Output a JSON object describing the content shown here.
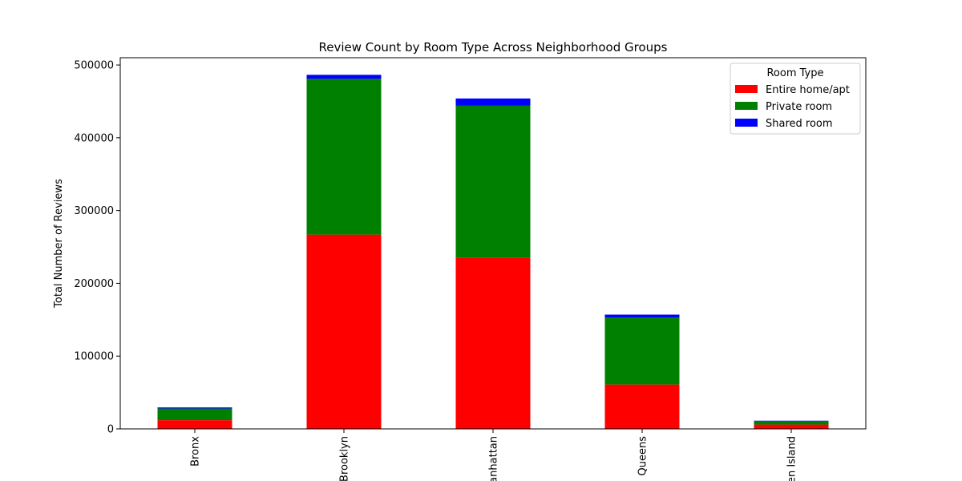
{
  "chart_data": {
    "type": "bar",
    "stacked": true,
    "title": "Review Count by Room Type Across Neighborhood Groups",
    "xlabel": "",
    "ylabel": "Total Number of Reviews",
    "categories": [
      "Bronx",
      "Brooklyn",
      "Manhattan",
      "Queens",
      "Staten Island"
    ],
    "ylim": [
      0,
      510000
    ],
    "yticks": [
      0,
      100000,
      200000,
      300000,
      400000,
      500000
    ],
    "ytick_labels": [
      "0",
      "100000",
      "200000",
      "300000",
      "400000",
      "500000"
    ],
    "series": [
      {
        "name": "Entire home/apt",
        "color": "#ff0000",
        "values": [
          12000,
          267000,
          235000,
          61000,
          6000
        ]
      },
      {
        "name": "Private room",
        "color": "#008000",
        "values": [
          16000,
          214000,
          209000,
          92000,
          5000
        ]
      },
      {
        "name": "Shared room",
        "color": "#0000ff",
        "values": [
          1500,
          5500,
          10000,
          4000,
          300
        ]
      }
    ],
    "legend": {
      "title": "Room Type",
      "position": "top-right"
    },
    "grid": false
  }
}
